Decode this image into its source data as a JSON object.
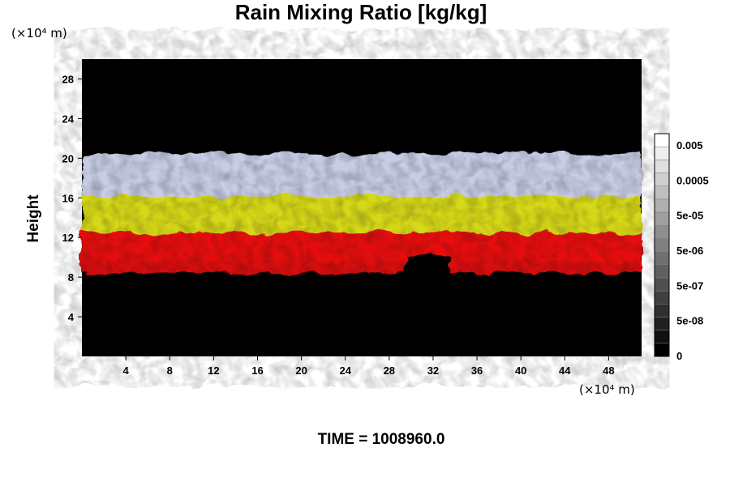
{
  "chart_data": {
    "type": "heatmap",
    "title": "Rain Mixing Ratio [kg/kg]",
    "xlabel": "",
    "ylabel": "Height",
    "x_unit": "(×10⁴ m)",
    "y_unit": "(×10⁴ m)",
    "xlim": [
      0,
      51
    ],
    "ylim": [
      0,
      30
    ],
    "x_ticks": [
      4,
      8,
      12,
      16,
      20,
      24,
      28,
      32,
      36,
      40,
      44,
      48
    ],
    "y_ticks": [
      4,
      8,
      12,
      16,
      20,
      24,
      28
    ],
    "colorbar": {
      "tick_labels": [
        "0.005",
        "0.0005",
        "5e-05",
        "5e-06",
        "5e-07",
        "5e-08",
        "0"
      ],
      "levels": 17
    },
    "layers": [
      {
        "color": "#c8cde6",
        "bottom": 16.0,
        "top": 20.5
      },
      {
        "color": "#d6d81a",
        "bottom": 12.3,
        "top": 16.2
      },
      {
        "color": "#e81010",
        "bottom": 8.6,
        "top": 12.5
      },
      {
        "color": "#d81010",
        "bottom": 8.4,
        "top": 9.6
      }
    ],
    "colors": {
      "background": "#000000",
      "ice": "#c8cde6",
      "yellow": "#d6d81a",
      "red": "#e81010"
    }
  },
  "time_label": "TIME = 1008960.0"
}
